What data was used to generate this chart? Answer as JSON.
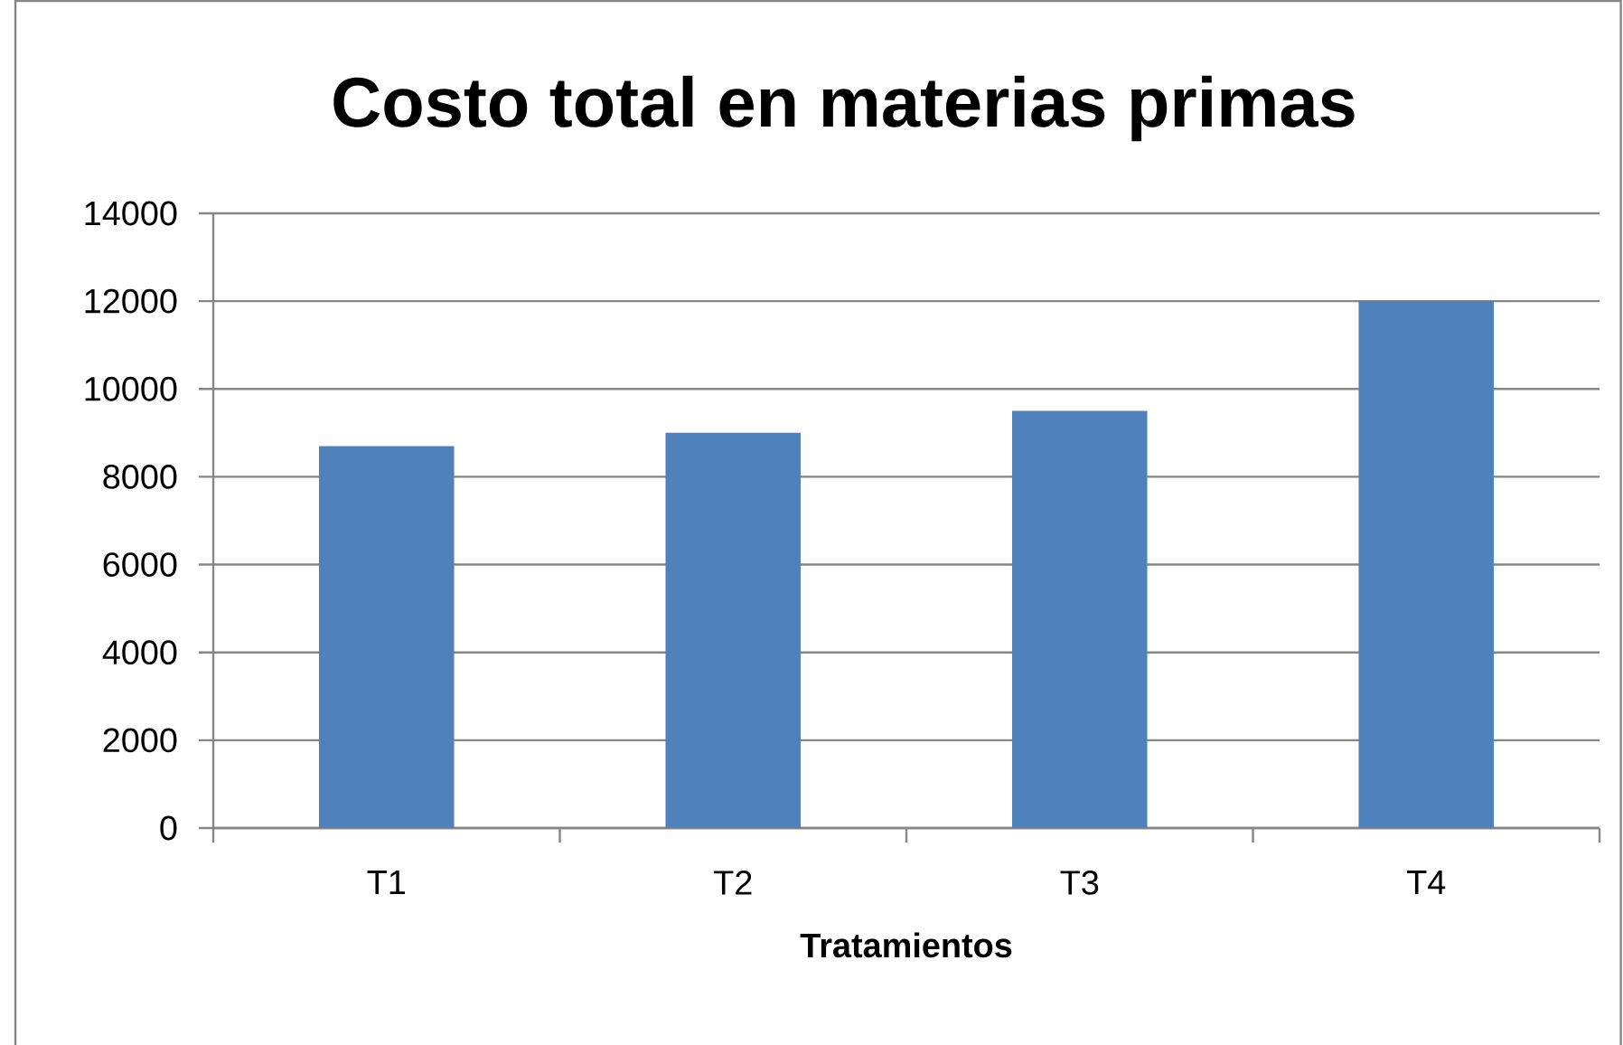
{
  "chart_data": {
    "type": "bar",
    "title": "Costo total en materias primas",
    "xlabel": "Tratamientos",
    "categories": [
      "T1",
      "T2",
      "T3",
      "T4"
    ],
    "values": [
      8700,
      9000,
      9500,
      12000
    ],
    "color": "#4f81bd",
    "ylim": [
      0,
      14000
    ],
    "yticks": [
      0,
      2000,
      4000,
      6000,
      8000,
      10000,
      12000,
      14000
    ],
    "grid": "y"
  }
}
